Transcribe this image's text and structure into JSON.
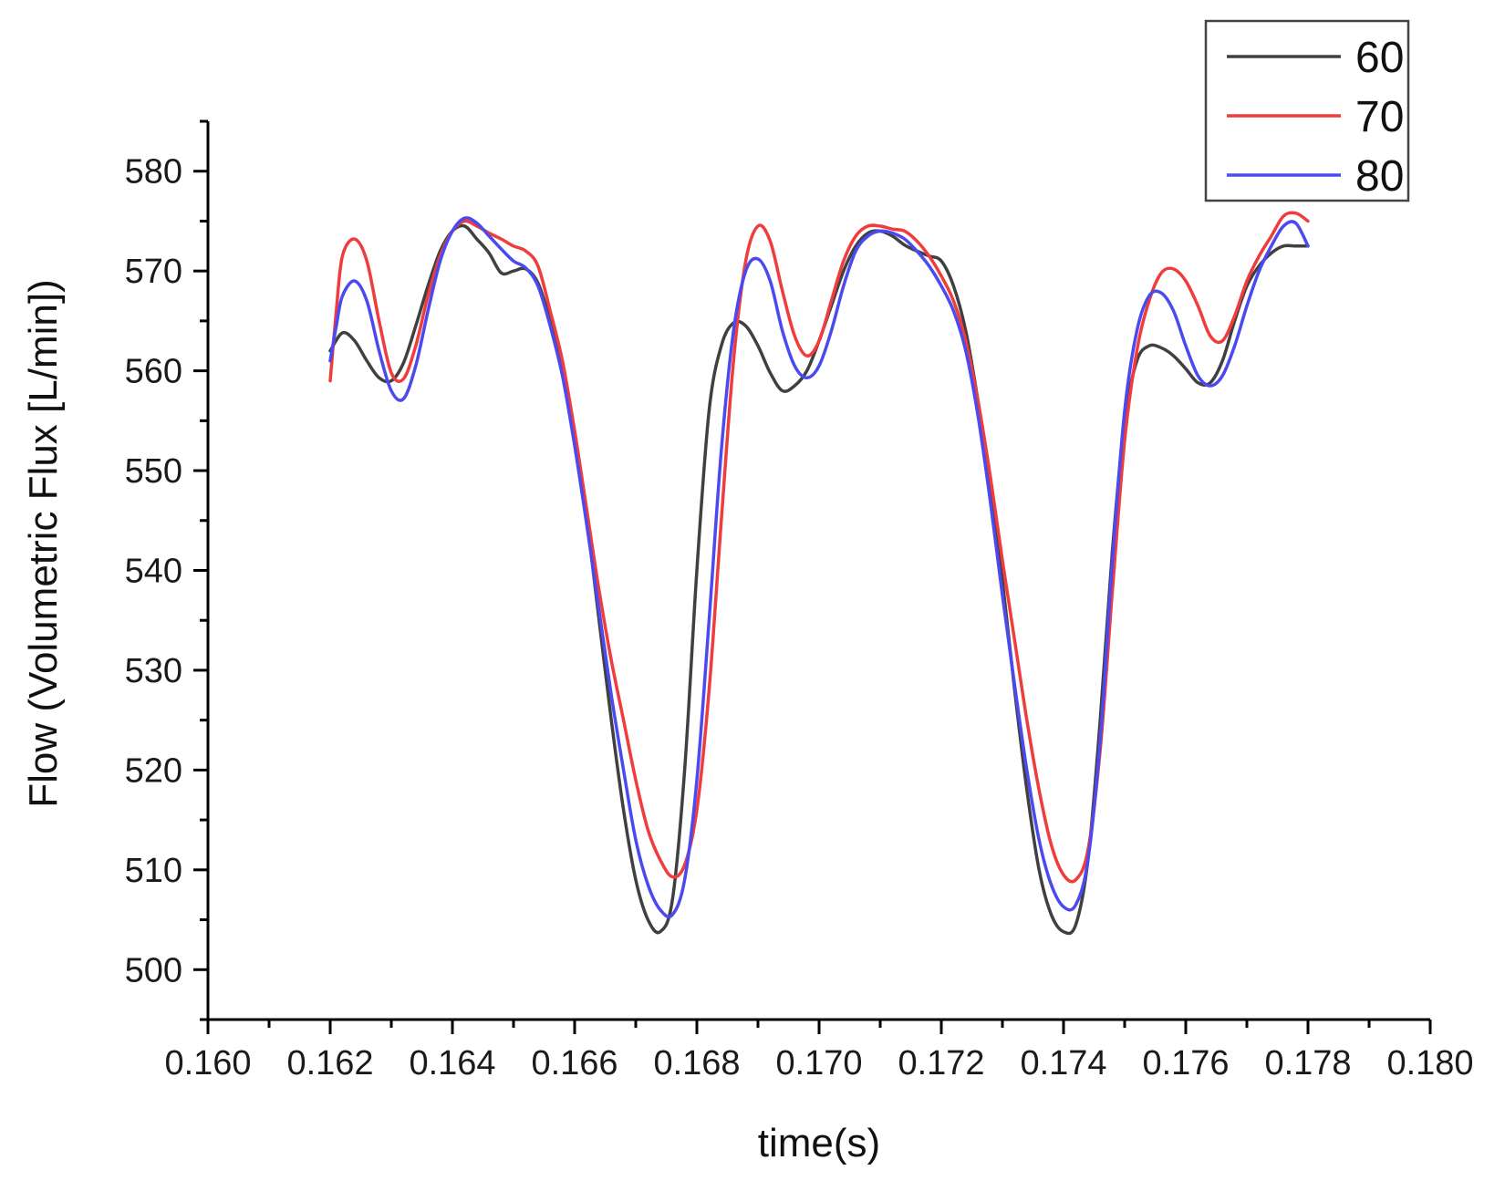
{
  "chart_data": {
    "type": "line",
    "xlabel": "time(s)",
    "ylabel": "Flow (Volumetric Flux [L/min])",
    "xlim": [
      0.16,
      0.18
    ],
    "ylim": [
      495,
      585
    ],
    "x_ticks": [
      "0.160",
      "0.162",
      "0.164",
      "0.166",
      "0.168",
      "0.170",
      "0.172",
      "0.174",
      "0.176",
      "0.178",
      "0.180"
    ],
    "y_ticks": [
      "500",
      "510",
      "520",
      "530",
      "540",
      "550",
      "560",
      "570",
      "580"
    ],
    "legend_position": "top-right",
    "grid": false,
    "series": [
      {
        "name": "60",
        "color": "#404040",
        "points": [
          [
            0.162,
            562.0
          ],
          [
            0.1622,
            563.8
          ],
          [
            0.1624,
            563.0
          ],
          [
            0.1626,
            561.0
          ],
          [
            0.1628,
            559.3
          ],
          [
            0.163,
            559.0
          ],
          [
            0.1632,
            560.8
          ],
          [
            0.1634,
            564.5
          ],
          [
            0.1636,
            568.5
          ],
          [
            0.1638,
            572.0
          ],
          [
            0.164,
            574.0
          ],
          [
            0.1642,
            574.5
          ],
          [
            0.1644,
            573.2
          ],
          [
            0.1646,
            571.8
          ],
          [
            0.1648,
            569.8
          ],
          [
            0.165,
            570.0
          ],
          [
            0.1652,
            570.2
          ],
          [
            0.1654,
            568.8
          ],
          [
            0.1656,
            565.0
          ],
          [
            0.1658,
            560.0
          ],
          [
            0.166,
            553.0
          ],
          [
            0.1662,
            545.0
          ],
          [
            0.1664,
            535.0
          ],
          [
            0.1666,
            525.0
          ],
          [
            0.1668,
            516.0
          ],
          [
            0.167,
            509.0
          ],
          [
            0.1672,
            505.0
          ],
          [
            0.1674,
            503.8
          ],
          [
            0.1676,
            507.0
          ],
          [
            0.1678,
            520.0
          ],
          [
            0.168,
            540.0
          ],
          [
            0.1682,
            556.0
          ],
          [
            0.1684,
            562.5
          ],
          [
            0.1686,
            564.8
          ],
          [
            0.1688,
            564.5
          ],
          [
            0.169,
            562.5
          ],
          [
            0.1692,
            559.8
          ],
          [
            0.1694,
            558.0
          ],
          [
            0.1696,
            558.5
          ],
          [
            0.1698,
            560.0
          ],
          [
            0.17,
            563.0
          ],
          [
            0.1702,
            566.5
          ],
          [
            0.1704,
            570.0
          ],
          [
            0.1706,
            572.5
          ],
          [
            0.1708,
            573.8
          ],
          [
            0.171,
            574.0
          ],
          [
            0.1712,
            573.5
          ],
          [
            0.1714,
            572.6
          ],
          [
            0.1716,
            572.0
          ],
          [
            0.1718,
            571.5
          ],
          [
            0.172,
            571.0
          ],
          [
            0.1722,
            568.5
          ],
          [
            0.1724,
            564.0
          ],
          [
            0.1726,
            557.0
          ],
          [
            0.1728,
            549.0
          ],
          [
            0.173,
            539.0
          ],
          [
            0.1732,
            528.0
          ],
          [
            0.1734,
            518.0
          ],
          [
            0.1736,
            510.0
          ],
          [
            0.1738,
            505.5
          ],
          [
            0.174,
            503.8
          ],
          [
            0.1742,
            504.5
          ],
          [
            0.1744,
            511.0
          ],
          [
            0.1746,
            525.0
          ],
          [
            0.1748,
            542.0
          ],
          [
            0.175,
            555.0
          ],
          [
            0.1752,
            561.0
          ],
          [
            0.1754,
            562.5
          ],
          [
            0.1756,
            562.3
          ],
          [
            0.1758,
            561.5
          ],
          [
            0.176,
            560.2
          ],
          [
            0.1762,
            558.8
          ],
          [
            0.1764,
            558.8
          ],
          [
            0.1766,
            561.0
          ],
          [
            0.1768,
            565.0
          ],
          [
            0.177,
            568.5
          ],
          [
            0.1772,
            570.5
          ],
          [
            0.1774,
            571.8
          ],
          [
            0.1776,
            572.5
          ],
          [
            0.1778,
            572.5
          ],
          [
            0.178,
            572.5
          ]
        ]
      },
      {
        "name": "70",
        "color": "#f03c3c",
        "points": [
          [
            0.162,
            559.0
          ],
          [
            0.1621,
            566.0
          ],
          [
            0.1622,
            571.5
          ],
          [
            0.1624,
            573.2
          ],
          [
            0.1626,
            571.0
          ],
          [
            0.1628,
            565.0
          ],
          [
            0.163,
            559.8
          ],
          [
            0.1632,
            559.2
          ],
          [
            0.1634,
            562.5
          ],
          [
            0.1636,
            567.5
          ],
          [
            0.1638,
            571.5
          ],
          [
            0.164,
            574.0
          ],
          [
            0.1642,
            575.0
          ],
          [
            0.1644,
            574.5
          ],
          [
            0.1646,
            573.8
          ],
          [
            0.1648,
            573.2
          ],
          [
            0.165,
            572.5
          ],
          [
            0.1652,
            572.0
          ],
          [
            0.1654,
            570.5
          ],
          [
            0.1656,
            566.0
          ],
          [
            0.1658,
            561.0
          ],
          [
            0.166,
            554.0
          ],
          [
            0.1662,
            546.0
          ],
          [
            0.1664,
            538.0
          ],
          [
            0.1666,
            531.0
          ],
          [
            0.1668,
            525.0
          ],
          [
            0.167,
            519.0
          ],
          [
            0.1672,
            514.0
          ],
          [
            0.1674,
            511.0
          ],
          [
            0.1676,
            509.3
          ],
          [
            0.1678,
            510.5
          ],
          [
            0.168,
            516.0
          ],
          [
            0.1682,
            528.0
          ],
          [
            0.1684,
            545.0
          ],
          [
            0.1686,
            561.0
          ],
          [
            0.1688,
            571.0
          ],
          [
            0.169,
            574.5
          ],
          [
            0.1692,
            573.0
          ],
          [
            0.1694,
            568.0
          ],
          [
            0.1696,
            563.5
          ],
          [
            0.1698,
            561.5
          ],
          [
            0.17,
            563.0
          ],
          [
            0.1702,
            567.0
          ],
          [
            0.1704,
            571.0
          ],
          [
            0.1706,
            573.5
          ],
          [
            0.1708,
            574.5
          ],
          [
            0.171,
            574.5
          ],
          [
            0.1712,
            574.2
          ],
          [
            0.1714,
            574.0
          ],
          [
            0.1716,
            573.0
          ],
          [
            0.1718,
            571.5
          ],
          [
            0.172,
            569.5
          ],
          [
            0.1722,
            567.0
          ],
          [
            0.1724,
            563.0
          ],
          [
            0.1726,
            557.0
          ],
          [
            0.1728,
            549.5
          ],
          [
            0.173,
            541.0
          ],
          [
            0.1732,
            533.0
          ],
          [
            0.1734,
            525.0
          ],
          [
            0.1736,
            518.0
          ],
          [
            0.1738,
            512.5
          ],
          [
            0.174,
            509.5
          ],
          [
            0.1742,
            509.0
          ],
          [
            0.1744,
            512.0
          ],
          [
            0.1746,
            522.0
          ],
          [
            0.1748,
            538.0
          ],
          [
            0.175,
            553.0
          ],
          [
            0.1752,
            562.0
          ],
          [
            0.1754,
            567.0
          ],
          [
            0.1756,
            569.8
          ],
          [
            0.1758,
            570.2
          ],
          [
            0.176,
            569.0
          ],
          [
            0.1762,
            566.5
          ],
          [
            0.1764,
            563.5
          ],
          [
            0.1766,
            563.0
          ],
          [
            0.1768,
            565.5
          ],
          [
            0.177,
            569.0
          ],
          [
            0.1772,
            571.5
          ],
          [
            0.1774,
            573.5
          ],
          [
            0.1776,
            575.5
          ],
          [
            0.1778,
            575.8
          ],
          [
            0.178,
            575.0
          ]
        ]
      },
      {
        "name": "80",
        "color": "#4a4af0",
        "points": [
          [
            0.162,
            561.0
          ],
          [
            0.1621,
            564.5
          ],
          [
            0.1622,
            567.5
          ],
          [
            0.1624,
            569.0
          ],
          [
            0.1626,
            567.0
          ],
          [
            0.1628,
            562.0
          ],
          [
            0.163,
            558.0
          ],
          [
            0.1632,
            557.2
          ],
          [
            0.1634,
            560.5
          ],
          [
            0.1636,
            566.0
          ],
          [
            0.1638,
            571.0
          ],
          [
            0.164,
            574.0
          ],
          [
            0.1642,
            575.3
          ],
          [
            0.1644,
            574.8
          ],
          [
            0.1646,
            573.5
          ],
          [
            0.1648,
            572.2
          ],
          [
            0.165,
            571.0
          ],
          [
            0.1652,
            570.3
          ],
          [
            0.1654,
            568.5
          ],
          [
            0.1656,
            564.5
          ],
          [
            0.1658,
            559.5
          ],
          [
            0.166,
            552.5
          ],
          [
            0.1662,
            544.5
          ],
          [
            0.1664,
            536.0
          ],
          [
            0.1666,
            527.5
          ],
          [
            0.1668,
            520.0
          ],
          [
            0.167,
            513.0
          ],
          [
            0.1672,
            508.5
          ],
          [
            0.1674,
            506.0
          ],
          [
            0.1676,
            505.5
          ],
          [
            0.1678,
            509.0
          ],
          [
            0.168,
            519.0
          ],
          [
            0.1682,
            535.0
          ],
          [
            0.1684,
            552.0
          ],
          [
            0.1686,
            564.0
          ],
          [
            0.1688,
            570.0
          ],
          [
            0.169,
            571.2
          ],
          [
            0.1692,
            569.0
          ],
          [
            0.1694,
            564.0
          ],
          [
            0.1696,
            560.5
          ],
          [
            0.1698,
            559.3
          ],
          [
            0.17,
            560.5
          ],
          [
            0.1702,
            564.0
          ],
          [
            0.1704,
            568.5
          ],
          [
            0.1706,
            572.0
          ],
          [
            0.1708,
            573.5
          ],
          [
            0.171,
            574.0
          ],
          [
            0.1712,
            573.8
          ],
          [
            0.1714,
            573.2
          ],
          [
            0.1716,
            572.0
          ],
          [
            0.1718,
            570.5
          ],
          [
            0.172,
            568.5
          ],
          [
            0.1722,
            566.0
          ],
          [
            0.1724,
            562.0
          ],
          [
            0.1726,
            555.5
          ],
          [
            0.1728,
            547.0
          ],
          [
            0.173,
            537.5
          ],
          [
            0.1732,
            528.5
          ],
          [
            0.1734,
            520.0
          ],
          [
            0.1736,
            513.0
          ],
          [
            0.1738,
            508.5
          ],
          [
            0.174,
            506.3
          ],
          [
            0.1742,
            506.5
          ],
          [
            0.1744,
            511.0
          ],
          [
            0.1746,
            523.0
          ],
          [
            0.1748,
            541.0
          ],
          [
            0.175,
            556.0
          ],
          [
            0.1752,
            564.0
          ],
          [
            0.1754,
            567.5
          ],
          [
            0.1756,
            567.8
          ],
          [
            0.1758,
            566.0
          ],
          [
            0.176,
            562.5
          ],
          [
            0.1762,
            559.5
          ],
          [
            0.1764,
            558.5
          ],
          [
            0.1766,
            559.5
          ],
          [
            0.1768,
            562.5
          ],
          [
            0.177,
            566.5
          ],
          [
            0.1772,
            570.0
          ],
          [
            0.1774,
            572.5
          ],
          [
            0.1776,
            574.5
          ],
          [
            0.1778,
            574.8
          ],
          [
            0.178,
            572.5
          ]
        ]
      }
    ]
  }
}
